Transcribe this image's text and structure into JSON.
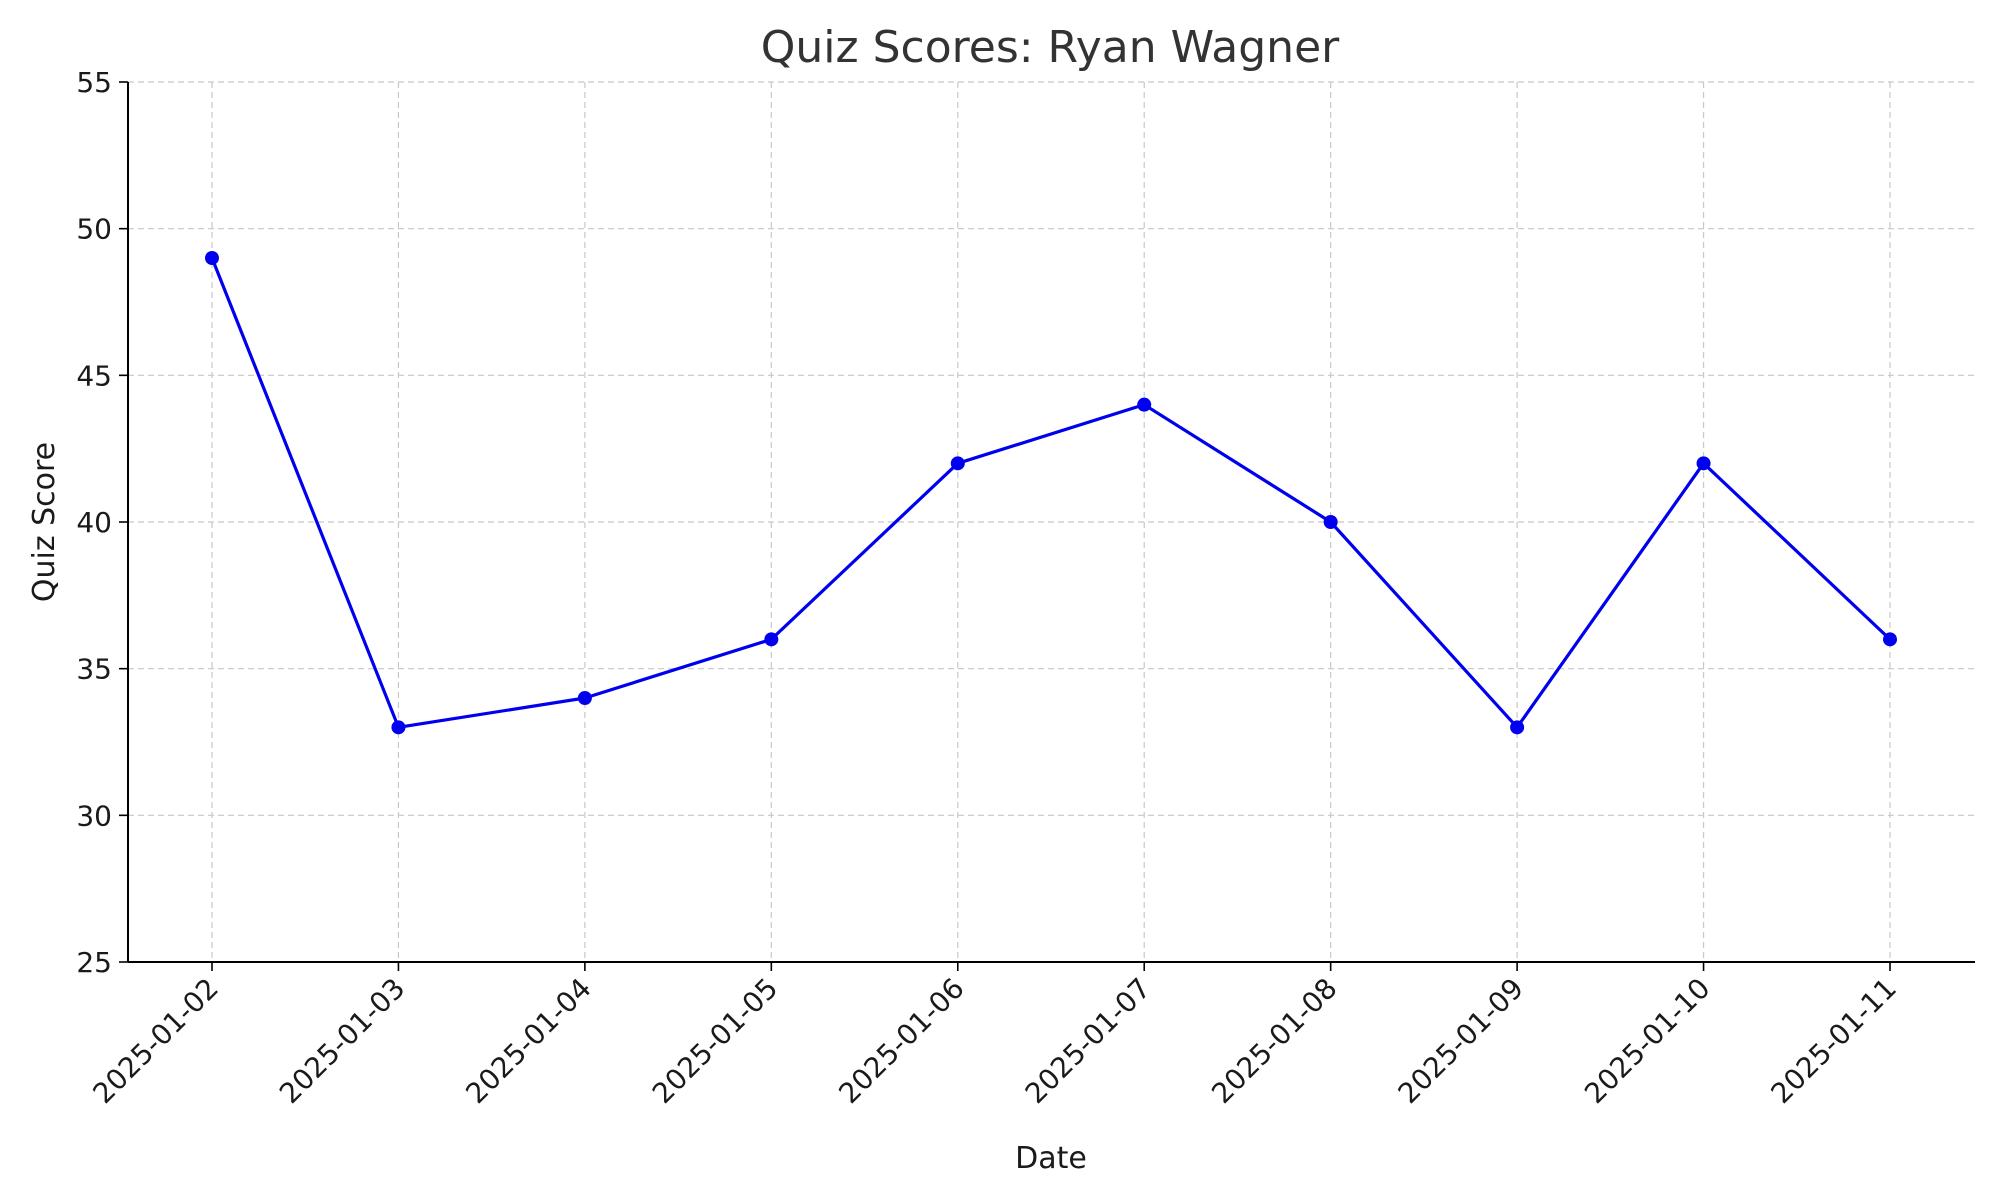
{
  "chart_data": {
    "type": "line",
    "title": "Quiz Scores: Ryan Wagner",
    "xlabel": "Date",
    "ylabel": "Quiz Score",
    "x": [
      "2025-01-02",
      "2025-01-03",
      "2025-01-04",
      "2025-01-05",
      "2025-01-06",
      "2025-01-07",
      "2025-01-08",
      "2025-01-09",
      "2025-01-10",
      "2025-01-11"
    ],
    "series": [
      {
        "values": [
          49,
          33,
          34,
          36,
          42,
          44,
          40,
          33,
          42,
          36
        ],
        "color": "#0000ee",
        "marker": "circle"
      }
    ],
    "ylim": [
      25,
      55
    ],
    "yticks": [
      25,
      30,
      35,
      40,
      45,
      50,
      55
    ],
    "xtick_rotation": 45,
    "grid": true,
    "grid_style": "dashed",
    "grid_color": "#c8c8c8",
    "legend": "none"
  }
}
